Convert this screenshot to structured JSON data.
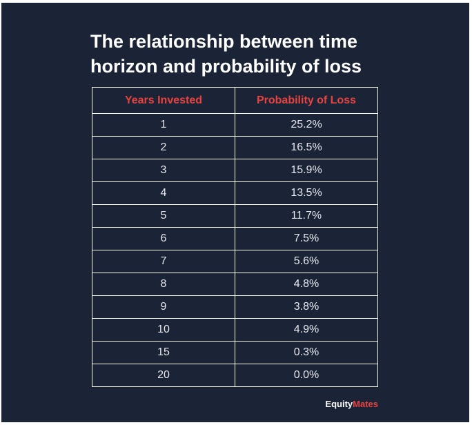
{
  "title": "The relationship between time horizon and probability of loss",
  "table": {
    "headers": [
      "Years Invested",
      "Probability of Loss"
    ],
    "rows": [
      [
        "1",
        "25.2%"
      ],
      [
        "2",
        "16.5%"
      ],
      [
        "3",
        "15.9%"
      ],
      [
        "4",
        "13.5%"
      ],
      [
        "5",
        "11.7%"
      ],
      [
        "6",
        "7.5%"
      ],
      [
        "7",
        "5.6%"
      ],
      [
        "8",
        "4.8%"
      ],
      [
        "9",
        "3.8%"
      ],
      [
        "10",
        "4.9%"
      ],
      [
        "15",
        "0.3%"
      ],
      [
        "20",
        "0.0%"
      ]
    ]
  },
  "logo": {
    "first": "Equity",
    "second": "Mates"
  }
}
